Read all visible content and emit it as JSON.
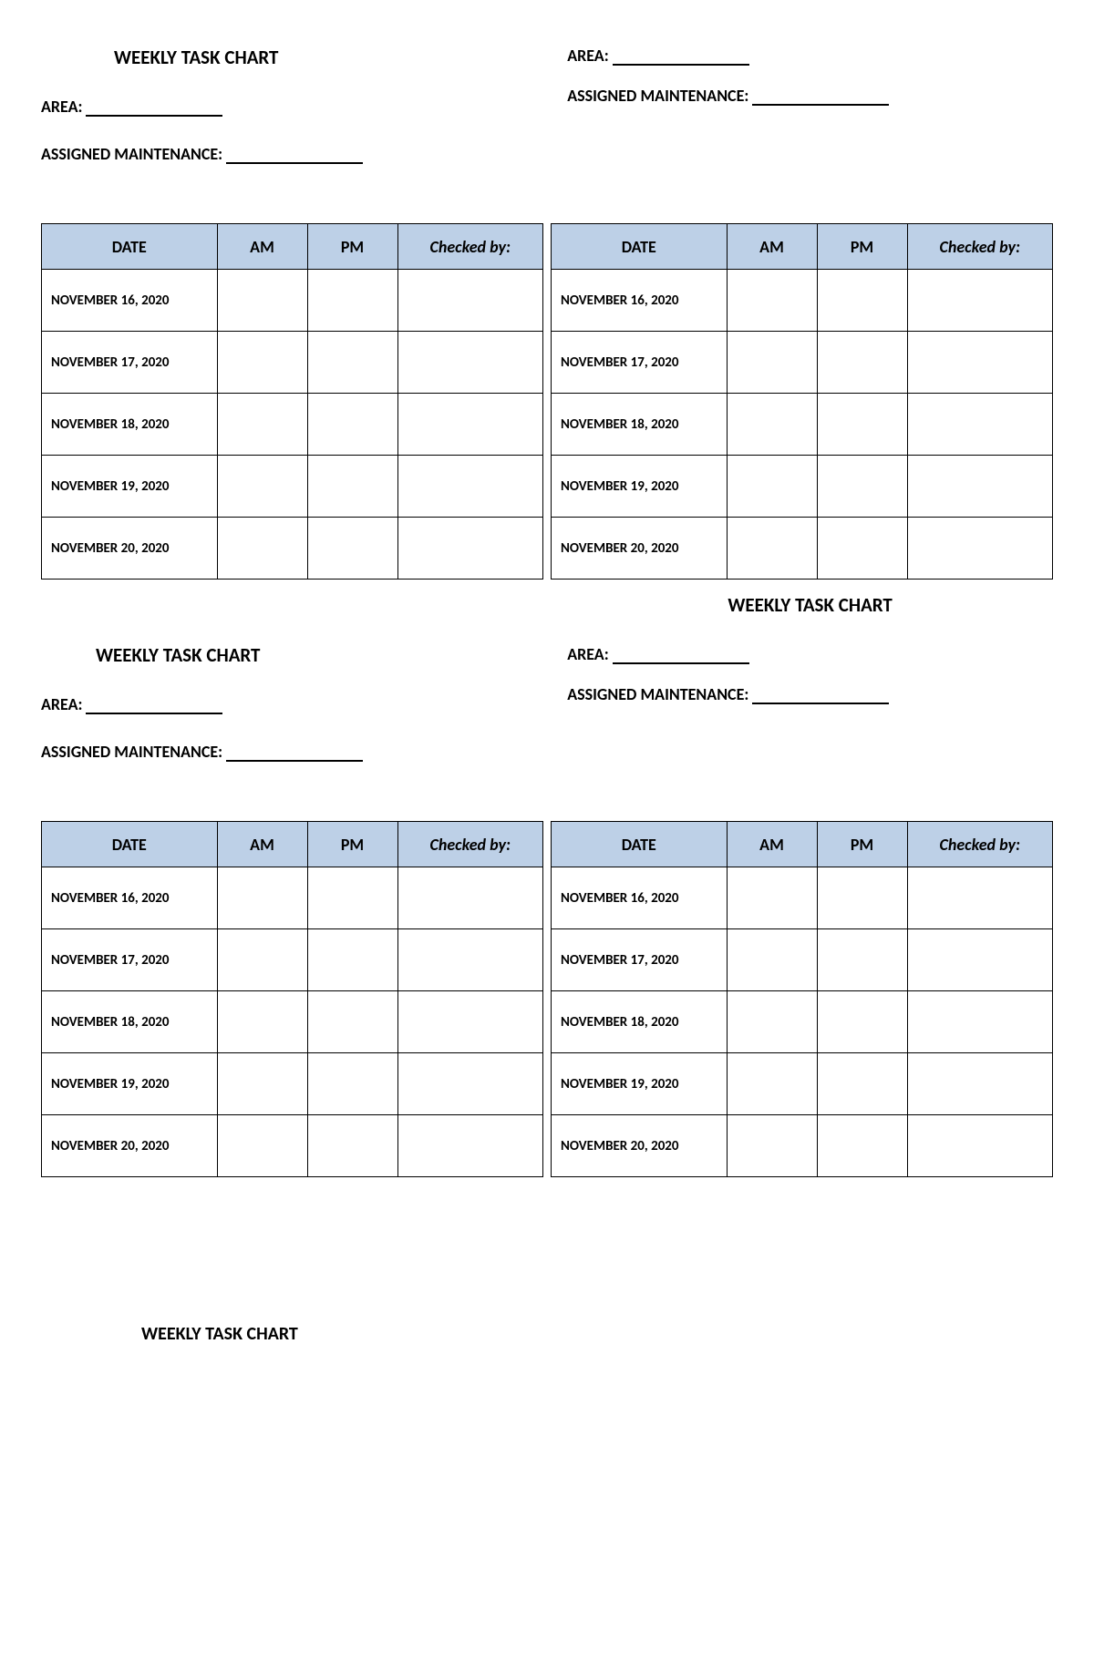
{
  "title": "WEEKLY TASK CHART",
  "labels": {
    "area": "AREA:",
    "assigned": "ASSIGNED MAINTENANCE:"
  },
  "table": {
    "headers": {
      "date": "DATE",
      "am": "AM",
      "pm": "PM",
      "checked": "Checked by:"
    },
    "header_bg": "#bdd0e7",
    "border_color": "#000000",
    "rows": [
      "NOVEMBER 16, 2020",
      "NOVEMBER 17, 2020",
      "NOVEMBER 18, 2020",
      "NOVEMBER 19, 2020",
      "NOVEMBER 20, 2020"
    ]
  }
}
